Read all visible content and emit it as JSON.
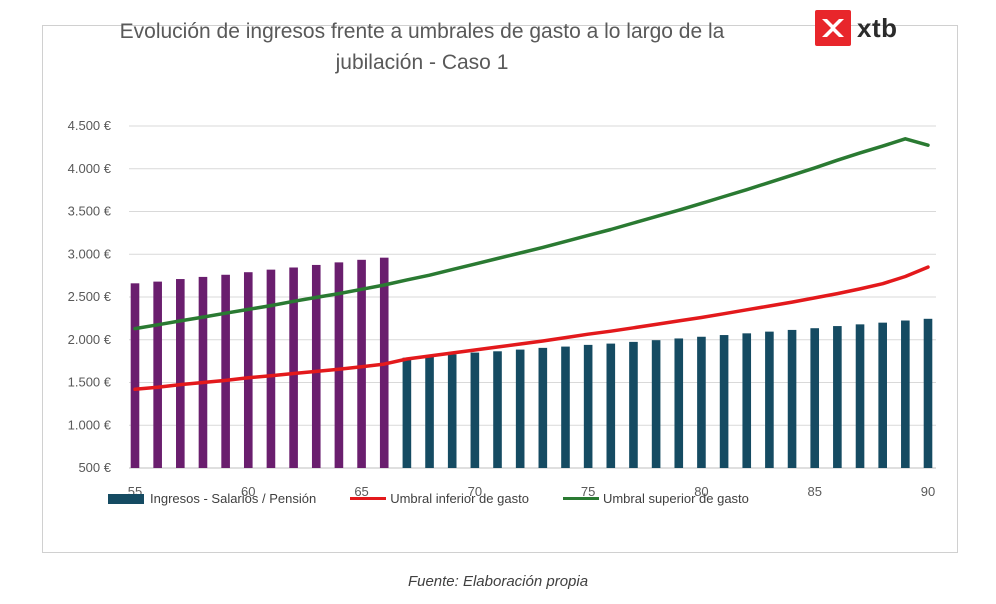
{
  "chart_data": {
    "type": "bar",
    "title": "Evolución de ingresos frente a umbrales de gasto a lo largo de la jubilación - Caso 1",
    "x": [
      55,
      56,
      57,
      58,
      59,
      60,
      61,
      62,
      63,
      64,
      65,
      66,
      67,
      68,
      69,
      70,
      71,
      72,
      73,
      74,
      75,
      76,
      77,
      78,
      79,
      80,
      81,
      82,
      83,
      84,
      85,
      86,
      87,
      88,
      89,
      90
    ],
    "xticks": [
      55,
      60,
      65,
      70,
      75,
      80,
      85,
      90
    ],
    "xtick_labels": [
      "55",
      "60",
      "65",
      "70",
      "75",
      "80",
      "85",
      "90"
    ],
    "ylim": [
      500,
      4500
    ],
    "yticks": [
      500,
      1000,
      1500,
      2000,
      2500,
      3000,
      3500,
      4000,
      4500
    ],
    "ytick_labels": [
      "500 €",
      "1.000 €",
      "1.500 €",
      "2.000 €",
      "2.500 €",
      "3.000 €",
      "3.500 €",
      "4.000 €",
      "4.500 €"
    ],
    "grid": true,
    "legend_position": "bottom",
    "bar_colors": {
      "work": "#6a1e6e",
      "retired": "#154b62"
    },
    "retirement_age": 67,
    "series": [
      {
        "name": "Ingresos - Salarios / Pensión",
        "kind": "bar",
        "color": "#154b62",
        "values": [
          2660,
          2680,
          2710,
          2735,
          2760,
          2790,
          2820,
          2845,
          2875,
          2905,
          2935,
          2960,
          1790,
          1810,
          1830,
          1850,
          1865,
          1885,
          1905,
          1920,
          1940,
          1955,
          1975,
          1995,
          2015,
          2035,
          2055,
          2075,
          2095,
          2115,
          2135,
          2160,
          2180,
          2200,
          2225,
          2245
        ]
      },
      {
        "name": "Umbral inferior de gasto",
        "kind": "line",
        "color": "#e3191c",
        "values": [
          1420,
          1445,
          1475,
          1500,
          1525,
          1555,
          1580,
          1605,
          1630,
          1655,
          1685,
          1715,
          1775,
          1810,
          1845,
          1880,
          1915,
          1950,
          1985,
          2025,
          2065,
          2100,
          2140,
          2180,
          2220,
          2260,
          2305,
          2350,
          2395,
          2440,
          2490,
          2540,
          2595,
          2655,
          2740,
          2850
        ]
      },
      {
        "name": "Umbral superior de gasto",
        "kind": "line",
        "color": "#2a7a32",
        "values": [
          2130,
          2175,
          2220,
          2265,
          2310,
          2355,
          2400,
          2450,
          2495,
          2540,
          2590,
          2640,
          2700,
          2755,
          2820,
          2885,
          2950,
          3015,
          3080,
          3150,
          3220,
          3290,
          3365,
          3440,
          3515,
          3595,
          3675,
          3755,
          3840,
          3925,
          4010,
          4100,
          4185,
          4265,
          4350,
          4275
        ]
      }
    ]
  },
  "brand": {
    "name": "xtb",
    "mark_color": "#e8262b"
  },
  "legend": {
    "bar_label": "Ingresos - Salarios / Pensión",
    "line1_label": "Umbral inferior de gasto",
    "line2_label": "Umbral superior de gasto"
  },
  "source_note": "Fuente: Elaboración propia"
}
